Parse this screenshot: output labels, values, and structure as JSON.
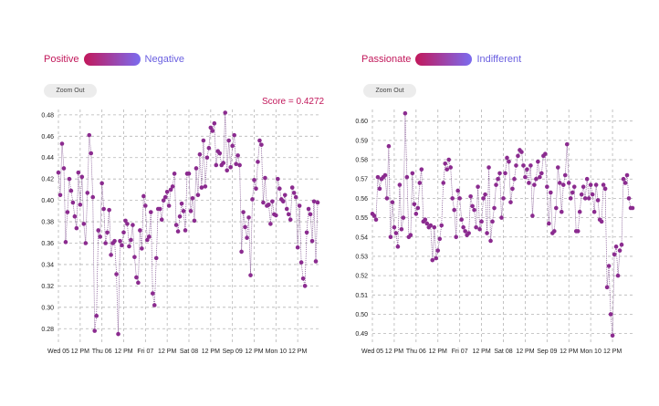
{
  "left": {
    "legend": {
      "pos_label": "Positive",
      "neg_label": "Negative",
      "from": "#c2185b",
      "to": "#7b6cf0"
    },
    "zoom_label": "Zoom Out",
    "score_text": "Score = 0.4272"
  },
  "right": {
    "legend": {
      "pos_label": "Passionate",
      "neg_label": "Indifferent",
      "from": "#c2185b",
      "to": "#7b6cf0"
    },
    "zoom_label": "Zoom Out"
  },
  "x_tick_labels": [
    "Wed 05",
    "12 PM",
    "Thu 06",
    "12 PM",
    "Fri 07",
    "12 PM",
    "Sat 08",
    "12 PM",
    "Sep 09",
    "12 PM",
    "Mon 10",
    "12 PM"
  ],
  "chart_data": [
    {
      "type": "scatter",
      "title": "",
      "xlabel": "",
      "ylabel": "",
      "x_domain": [
        0,
        144
      ],
      "ylim": [
        0.27,
        0.485
      ],
      "y_ticks": [
        0.28,
        0.3,
        0.32,
        0.34,
        0.36,
        0.38,
        0.4,
        0.42,
        0.44,
        0.46,
        0.48
      ],
      "y_tick_labels": [
        "0.28",
        "0.30",
        "0.32",
        "0.34",
        "0.36",
        "0.38",
        "0.40",
        "0.42",
        "0.44",
        "0.46",
        "0.48"
      ],
      "x_tick_values": [
        0,
        12,
        24,
        36,
        48,
        60,
        72,
        84,
        96,
        108,
        120,
        132
      ],
      "x_tick_labels": [
        "Wed 05",
        "12 PM",
        "Thu 06",
        "12 PM",
        "Fri 07",
        "12 PM",
        "Sat 08",
        "12 PM",
        "Sep 09",
        "12 PM",
        "Mon 10",
        "12 PM"
      ],
      "grid": true,
      "series": [
        {
          "x": [
            0,
            1,
            2,
            3,
            4,
            5,
            6,
            7,
            8,
            9,
            10,
            11,
            12,
            13,
            14,
            15,
            16,
            17,
            18,
            19,
            20,
            21,
            22,
            23,
            24,
            25,
            26,
            27,
            28,
            29,
            30,
            31,
            32,
            33,
            34,
            35,
            36,
            37,
            38,
            39,
            40,
            41,
            42,
            43,
            44,
            45,
            46,
            47,
            48,
            49,
            50,
            51,
            52,
            53,
            54,
            55,
            56,
            57,
            58,
            59,
            60,
            61,
            62,
            63,
            64,
            65,
            66,
            67,
            68,
            69,
            70,
            71,
            72,
            73,
            74,
            75,
            76,
            77,
            78,
            79,
            80,
            81,
            82,
            83,
            84,
            85,
            86,
            87,
            88,
            89,
            90,
            91,
            92,
            93,
            94,
            95,
            96,
            97,
            98,
            99,
            100,
            101,
            102,
            103,
            104,
            105,
            106,
            107,
            108,
            109,
            110,
            111,
            112,
            113,
            114,
            115,
            116,
            117,
            118,
            119,
            120,
            121,
            122,
            123,
            124,
            125,
            126,
            127,
            128,
            129,
            130,
            131,
            132,
            133,
            134,
            135,
            136,
            137,
            138,
            139,
            140,
            141,
            142,
            143
          ],
          "y": [
            0.426,
            0.405,
            0.453,
            0.43,
            0.361,
            0.389,
            0.42,
            0.409,
            0.398,
            0.385,
            0.374,
            0.426,
            0.396,
            0.422,
            0.378,
            0.36,
            0.407,
            0.461,
            0.444,
            0.403,
            0.278,
            0.292,
            0.372,
            0.366,
            0.416,
            0.392,
            0.36,
            0.37,
            0.391,
            0.349,
            0.36,
            0.362,
            0.331,
            0.275,
            0.362,
            0.358,
            0.37,
            0.381,
            0.378,
            0.357,
            0.363,
            0.377,
            0.347,
            0.328,
            0.323,
            0.372,
            0.355,
            0.404,
            0.395,
            0.363,
            0.366,
            0.389,
            0.313,
            0.302,
            0.346,
            0.392,
            0.392,
            0.382,
            0.4,
            0.403,
            0.408,
            0.395,
            0.41,
            0.413,
            0.425,
            0.377,
            0.371,
            0.385,
            0.397,
            0.39,
            0.372,
            0.425,
            0.425,
            0.39,
            0.402,
            0.381,
            0.43,
            0.405,
            0.443,
            0.412,
            0.456,
            0.413,
            0.44,
            0.449,
            0.468,
            0.465,
            0.472,
            0.433,
            0.446,
            0.444,
            0.433,
            0.435,
            0.482,
            0.428,
            0.456,
            0.431,
            0.451,
            0.461,
            0.434,
            0.442,
            0.433,
            0.352,
            0.389,
            0.375,
            0.365,
            0.384,
            0.33,
            0.401,
            0.419,
            0.411,
            0.436,
            0.456,
            0.452,
            0.398,
            0.421,
            0.395,
            0.396,
            0.378,
            0.399,
            0.387,
            0.386,
            0.42,
            0.411,
            0.401,
            0.399,
            0.405,
            0.392,
            0.387,
            0.382,
            0.412,
            0.407,
            0.403,
            0.356,
            0.395,
            0.342,
            0.327,
            0.32,
            0.37,
            0.392,
            0.387,
            0.362,
            0.399,
            0.343,
            0.398
          ]
        }
      ]
    },
    {
      "type": "scatter",
      "title": "",
      "xlabel": "",
      "ylabel": "",
      "x_domain": [
        0,
        144
      ],
      "ylim": [
        0.487,
        0.606
      ],
      "y_ticks": [
        0.49,
        0.5,
        0.51,
        0.52,
        0.53,
        0.54,
        0.55,
        0.56,
        0.57,
        0.58,
        0.59,
        0.6
      ],
      "y_tick_labels": [
        "0.49",
        "0.50",
        "0.51",
        "0.52",
        "0.53",
        "0.54",
        "0.55",
        "0.56",
        "0.57",
        "0.58",
        "0.59",
        "0.60"
      ],
      "x_tick_values": [
        0,
        12,
        24,
        36,
        48,
        60,
        72,
        84,
        96,
        108,
        120,
        132
      ],
      "x_tick_labels": [
        "Wed 05",
        "12 PM",
        "Thu 06",
        "12 PM",
        "Fri 07",
        "12 PM",
        "Sat 08",
        "12 PM",
        "Sep 09",
        "12 PM",
        "Mon 10",
        "12 PM"
      ],
      "grid": true,
      "series": [
        {
          "x": [
            0,
            1,
            2,
            3,
            4,
            5,
            6,
            7,
            8,
            9,
            10,
            11,
            12,
            13,
            14,
            15,
            16,
            17,
            18,
            19,
            20,
            21,
            22,
            23,
            24,
            25,
            26,
            27,
            28,
            29,
            30,
            31,
            32,
            33,
            34,
            35,
            36,
            37,
            38,
            39,
            40,
            41,
            42,
            43,
            44,
            45,
            46,
            47,
            48,
            49,
            50,
            51,
            52,
            53,
            54,
            55,
            56,
            57,
            58,
            59,
            60,
            61,
            62,
            63,
            64,
            65,
            66,
            67,
            68,
            69,
            70,
            71,
            72,
            73,
            74,
            75,
            76,
            77,
            78,
            79,
            80,
            81,
            82,
            83,
            84,
            85,
            86,
            87,
            88,
            89,
            90,
            91,
            92,
            93,
            94,
            95,
            96,
            97,
            98,
            99,
            100,
            101,
            102,
            103,
            104,
            105,
            106,
            107,
            108,
            109,
            110,
            111,
            112,
            113,
            114,
            115,
            116,
            117,
            118,
            119,
            120,
            121,
            122,
            123,
            124,
            125,
            126,
            127,
            128,
            129,
            130,
            131,
            132,
            133,
            134,
            135,
            136,
            137,
            138,
            139,
            140,
            141,
            142,
            143
          ],
          "y": [
            0.552,
            0.551,
            0.549,
            0.571,
            0.565,
            0.57,
            0.571,
            0.572,
            0.56,
            0.587,
            0.54,
            0.558,
            0.545,
            0.542,
            0.535,
            0.567,
            0.544,
            0.55,
            0.604,
            0.571,
            0.54,
            0.541,
            0.573,
            0.557,
            0.552,
            0.555,
            0.568,
            0.575,
            0.548,
            0.549,
            0.547,
            0.545,
            0.546,
            0.528,
            0.545,
            0.529,
            0.533,
            0.539,
            0.546,
            0.568,
            0.578,
            0.575,
            0.58,
            0.576,
            0.56,
            0.554,
            0.54,
            0.564,
            0.56,
            0.549,
            0.545,
            0.543,
            0.541,
            0.542,
            0.561,
            0.556,
            0.554,
            0.545,
            0.566,
            0.544,
            0.548,
            0.56,
            0.562,
            0.542,
            0.576,
            0.538,
            0.548,
            0.555,
            0.567,
            0.57,
            0.573,
            0.55,
            0.56,
            0.573,
            0.581,
            0.579,
            0.558,
            0.565,
            0.57,
            0.577,
            0.582,
            0.585,
            0.584,
            0.577,
            0.571,
            0.575,
            0.568,
            0.577,
            0.551,
            0.567,
            0.57,
            0.579,
            0.571,
            0.573,
            0.582,
            0.583,
            0.566,
            0.547,
            0.563,
            0.542,
            0.543,
            0.555,
            0.576,
            0.568,
            0.553,
            0.567,
            0.572,
            0.588,
            0.568,
            0.56,
            0.563,
            0.566,
            0.543,
            0.543,
            0.553,
            0.562,
            0.566,
            0.56,
            0.57,
            0.56,
            0.567,
            0.562,
            0.553,
            0.567,
            0.559,
            0.549,
            0.548,
            0.567,
            0.565,
            0.514,
            0.525,
            0.5,
            0.489,
            0.531,
            0.535,
            0.52,
            0.533,
            0.536,
            0.57,
            0.568,
            0.572,
            0.56,
            0.555,
            0.555
          ]
        }
      ]
    }
  ]
}
